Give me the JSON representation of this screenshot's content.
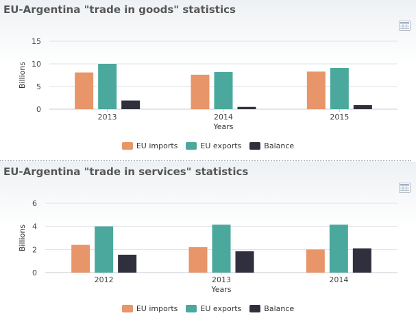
{
  "colors": {
    "eu_imports": "#e8956a",
    "eu_exports": "#4aa89c",
    "balance": "#2f2f3d"
  },
  "chart_data": [
    {
      "type": "bar",
      "title": "EU-Argentina \"trade in goods\" statistics",
      "xlabel": "Years",
      "ylabel": "Billions",
      "ylim": [
        0,
        15
      ],
      "yticks": [
        0,
        5,
        10,
        15
      ],
      "categories": [
        "2013",
        "2014",
        "2015"
      ],
      "series": [
        {
          "name": "EU imports",
          "values": [
            8.1,
            7.6,
            8.3
          ]
        },
        {
          "name": "EU exports",
          "values": [
            10.0,
            8.2,
            9.1
          ]
        },
        {
          "name": "Balance",
          "values": [
            1.9,
            0.5,
            0.9
          ]
        }
      ],
      "grid": true,
      "legend": "bottom-center"
    },
    {
      "type": "bar",
      "title": "EU-Argentina \"trade in services\" statistics",
      "xlabel": "Years",
      "ylabel": "Billions",
      "ylim": [
        0,
        6
      ],
      "yticks": [
        0,
        2,
        4,
        6
      ],
      "categories": [
        "2012",
        "2013",
        "2014"
      ],
      "series": [
        {
          "name": "EU imports",
          "values": [
            2.4,
            2.2,
            2.0
          ]
        },
        {
          "name": "EU exports",
          "values": [
            4.0,
            4.15,
            4.15
          ]
        },
        {
          "name": "Balance",
          "values": [
            1.55,
            1.85,
            2.1
          ]
        }
      ],
      "grid": true,
      "legend": "bottom-center"
    }
  ]
}
